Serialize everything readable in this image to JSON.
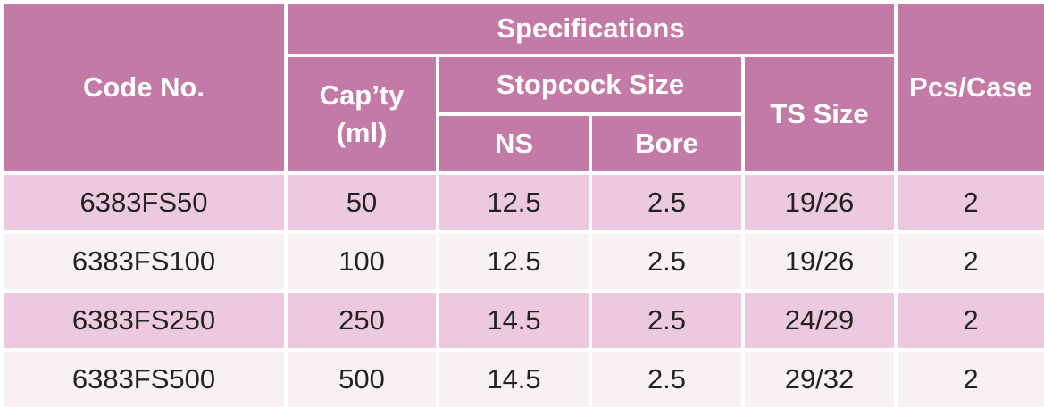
{
  "headers": {
    "code_no": "Code No.",
    "specifications": "Specifications",
    "capacity_line1": "Cap’ty",
    "capacity_line2": "(ml)",
    "stopcock_size": "Stopcock Size",
    "ns": "NS",
    "bore": "Bore",
    "ts_size": "TS Size",
    "pcs_case": "Pcs/Case"
  },
  "rows": [
    {
      "code": "6383FS50",
      "capacity": "50",
      "ns": "12.5",
      "bore": "2.5",
      "ts_size": "19/26",
      "pcs_case": "2"
    },
    {
      "code": "6383FS100",
      "capacity": "100",
      "ns": "12.5",
      "bore": "2.5",
      "ts_size": "19/26",
      "pcs_case": "2"
    },
    {
      "code": "6383FS250",
      "capacity": "250",
      "ns": "14.5",
      "bore": "2.5",
      "ts_size": "24/29",
      "pcs_case": "2"
    },
    {
      "code": "6383FS500",
      "capacity": "500",
      "ns": "14.5",
      "bore": "2.5",
      "ts_size": "29/32",
      "pcs_case": "2"
    }
  ],
  "colors": {
    "header_bg": "#c37aa6",
    "header_text": "#ffffff",
    "row_odd_bg": "#ecc9de",
    "row_even_bg": "#f9f0f5",
    "cell_text": "#222222"
  }
}
